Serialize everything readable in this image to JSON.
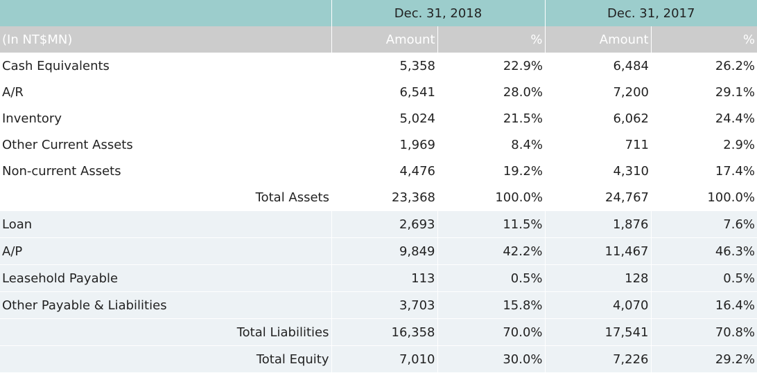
{
  "header": {
    "period_2018": "Dec. 31, 2018",
    "period_2017": "Dec. 31, 2017",
    "unit_label": "(In NT$MN)",
    "amount_label": "Amount",
    "percent_label": "%"
  },
  "rows": [
    {
      "label": "Cash Equivalents",
      "amount_2018": "5,358",
      "pct_2018": "22.9%",
      "amount_2017": "6,484",
      "pct_2017": "26.2%"
    },
    {
      "label": "A/R",
      "amount_2018": "6,541",
      "pct_2018": "28.0%",
      "amount_2017": "7,200",
      "pct_2017": "29.1%"
    },
    {
      "label": "Inventory",
      "amount_2018": "5,024",
      "pct_2018": "21.5%",
      "amount_2017": "6,062",
      "pct_2017": "24.4%"
    },
    {
      "label": "Other Current Assets",
      "amount_2018": "1,969",
      "pct_2018": "8.4%",
      "amount_2017": "711",
      "pct_2017": "2.9%"
    },
    {
      "label": "Non-current Assets",
      "amount_2018": "4,476",
      "pct_2018": "19.2%",
      "amount_2017": "4,310",
      "pct_2017": "17.4%"
    },
    {
      "label": "Total Assets",
      "amount_2018": "23,368",
      "pct_2018": "100.0%",
      "amount_2017": "24,767",
      "pct_2017": "100.0%"
    },
    {
      "label": "Loan",
      "amount_2018": "2,693",
      "pct_2018": "11.5%",
      "amount_2017": "1,876",
      "pct_2017": "7.6%"
    },
    {
      "label": "A/P",
      "amount_2018": "9,849",
      "pct_2018": "42.2%",
      "amount_2017": "11,467",
      "pct_2017": "46.3%"
    },
    {
      "label": "Leasehold Payable",
      "amount_2018": "113",
      "pct_2018": "0.5%",
      "amount_2017": "128",
      "pct_2017": "0.5%"
    },
    {
      "label": "Other Payable & Liabilities",
      "amount_2018": "3,703",
      "pct_2018": "15.8%",
      "amount_2017": "4,070",
      "pct_2017": "16.4%"
    },
    {
      "label": "Total Liabilities",
      "amount_2018": "16,358",
      "pct_2018": "70.0%",
      "amount_2017": "17,541",
      "pct_2017": "70.8%"
    },
    {
      "label": "Total Equity",
      "amount_2018": "7,010",
      "pct_2018": "30.0%",
      "amount_2017": "7,226",
      "pct_2017": "29.2%"
    }
  ]
}
